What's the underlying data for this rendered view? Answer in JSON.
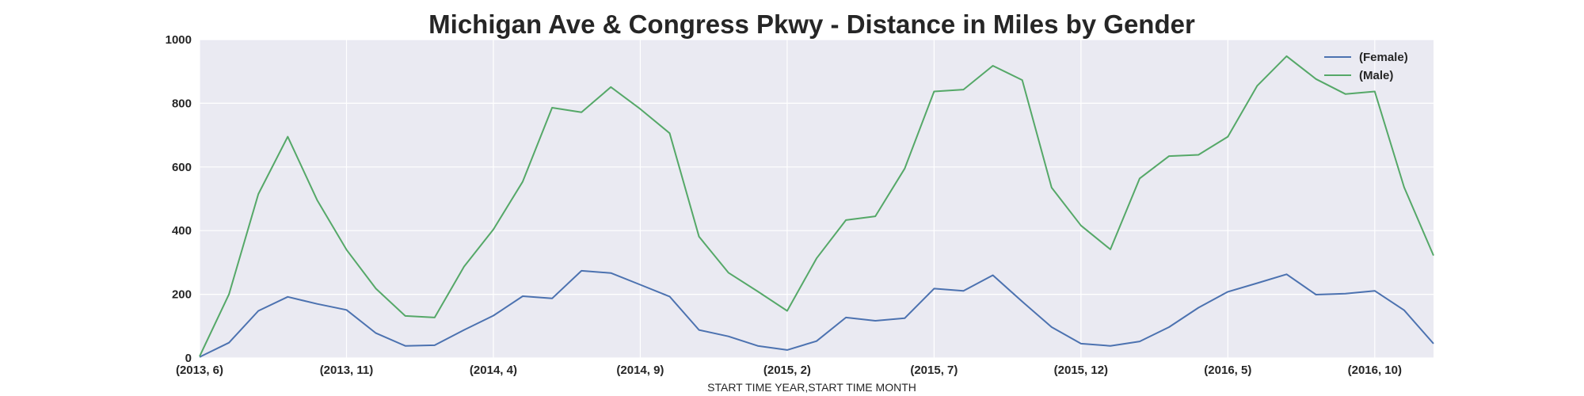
{
  "chart_data": {
    "type": "line",
    "title": "Michigan Ave & Congress Pkwy - Distance in Miles by Gender",
    "xlabel": "START TIME YEAR,START TIME MONTH",
    "ylabel": "",
    "ylim": [
      0,
      1000
    ],
    "yticks": [
      0,
      200,
      400,
      600,
      800,
      1000
    ],
    "grid": true,
    "legend_position": "top-right",
    "x": [
      "(2013, 6)",
      "(2013, 7)",
      "(2013, 8)",
      "(2013, 9)",
      "(2013, 10)",
      "(2013, 11)",
      "(2013, 12)",
      "(2014, 1)",
      "(2014, 2)",
      "(2014, 3)",
      "(2014, 4)",
      "(2014, 5)",
      "(2014, 6)",
      "(2014, 7)",
      "(2014, 8)",
      "(2014, 9)",
      "(2014, 10)",
      "(2014, 11)",
      "(2014, 12)",
      "(2015, 1)",
      "(2015, 2)",
      "(2015, 3)",
      "(2015, 4)",
      "(2015, 5)",
      "(2015, 6)",
      "(2015, 7)",
      "(2015, 8)",
      "(2015, 9)",
      "(2015, 10)",
      "(2015, 11)",
      "(2015, 12)",
      "(2016, 1)",
      "(2016, 2)",
      "(2016, 3)",
      "(2016, 4)",
      "(2016, 5)",
      "(2016, 6)",
      "(2016, 7)",
      "(2016, 8)",
      "(2016, 9)",
      "(2016, 10)",
      "(2016, 11)",
      "(2016, 12)"
    ],
    "xtick_labels": [
      "(2013, 6)",
      "(2013, 11)",
      "(2014, 4)",
      "(2014, 9)",
      "(2015, 2)",
      "(2015, 7)",
      "(2015, 12)",
      "(2016, 5)",
      "(2016, 10)"
    ],
    "series": [
      {
        "name": "(Female)",
        "color": "#4c72b0",
        "values": [
          3,
          48,
          148,
          192,
          170,
          151,
          78,
          38,
          40,
          88,
          133,
          194,
          187,
          274,
          267,
          230,
          193,
          88,
          68,
          38,
          25,
          53,
          127,
          117,
          125,
          218,
          211,
          260,
          177,
          97,
          45,
          38,
          52,
          97,
          158,
          208,
          235,
          263,
          199,
          202,
          211,
          150,
          45
        ]
      },
      {
        "name": "(Male)",
        "color": "#55a868",
        "values": [
          5,
          200,
          515,
          695,
          496,
          340,
          218,
          132,
          127,
          287,
          404,
          554,
          786,
          772,
          851,
          782,
          706,
          381,
          268,
          209,
          148,
          313,
          433,
          445,
          595,
          837,
          843,
          918,
          873,
          535,
          416,
          341,
          564,
          634,
          638,
          695,
          855,
          948,
          876,
          829,
          837,
          536,
          322
        ]
      }
    ]
  }
}
